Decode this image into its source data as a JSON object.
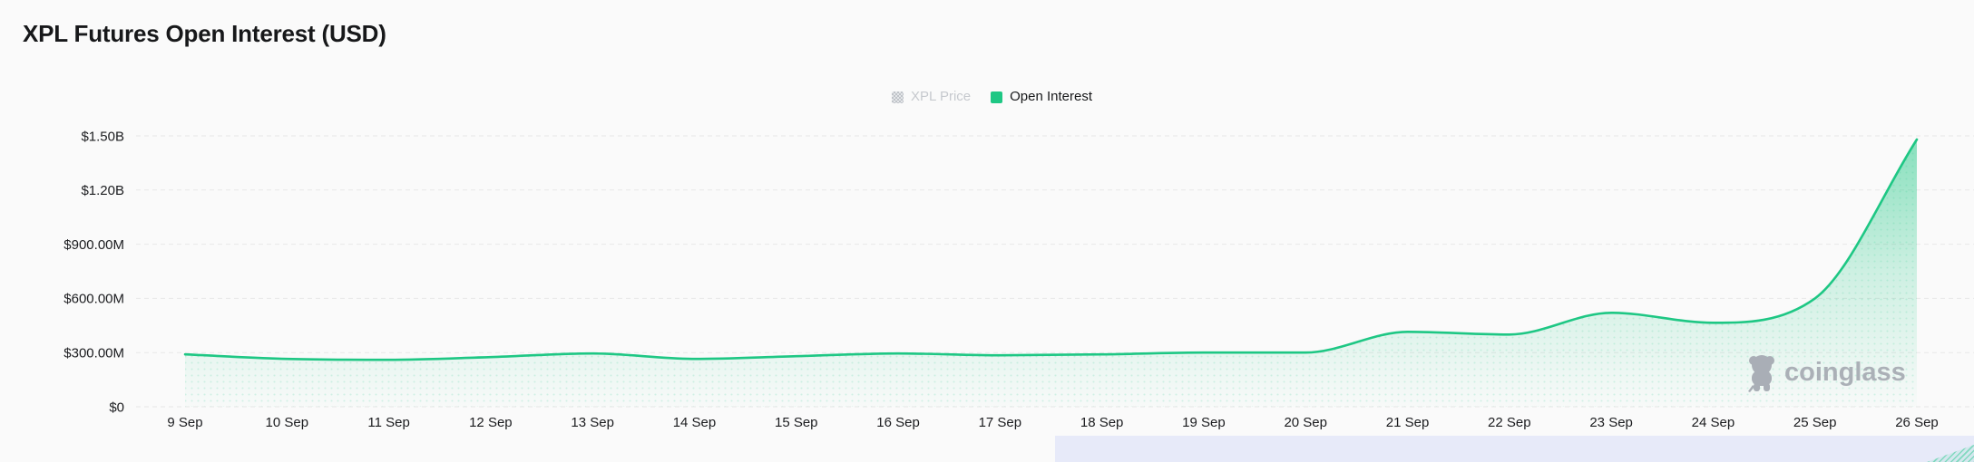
{
  "page": {
    "title": "XPL Futures Open Interest (USD)"
  },
  "legend": {
    "items": [
      {
        "label": "XPL Price",
        "state": "disabled",
        "swatch_color": "#c9ccd1"
      },
      {
        "label": "Open Interest",
        "state": "active",
        "swatch_color": "#1ec784"
      }
    ]
  },
  "watermark": {
    "label": "coinglass"
  },
  "colors": {
    "background": "#fafafa",
    "accent_green": "#1ec784",
    "grid": "#e7e7e7",
    "axis_text": "#1b1c1f",
    "disabled_text": "#c6c9ce",
    "navigator_mask": "#e7eaf9"
  },
  "chart_data": {
    "type": "area",
    "title": "XPL Futures Open Interest (USD)",
    "x_categories": [
      "9 Sep",
      "10 Sep",
      "11 Sep",
      "12 Sep",
      "13 Sep",
      "14 Sep",
      "15 Sep",
      "16 Sep",
      "17 Sep",
      "18 Sep",
      "19 Sep",
      "20 Sep",
      "21 Sep",
      "22 Sep",
      "23 Sep",
      "24 Sep",
      "25 Sep",
      "26 Sep"
    ],
    "series": [
      {
        "name": "XPL Price",
        "visible": false,
        "values": []
      },
      {
        "name": "Open Interest",
        "visible": true,
        "unit": "USD (millions)",
        "values": [
          290,
          265,
          260,
          275,
          295,
          265,
          280,
          295,
          285,
          290,
          300,
          300,
          415,
          400,
          520,
          465,
          600,
          1480
        ]
      }
    ],
    "y_ticks": [
      {
        "label": "$1.50B",
        "value": 1500
      },
      {
        "label": "$1.20B",
        "value": 1200
      },
      {
        "label": "$900.00M",
        "value": 900
      },
      {
        "label": "$600.00M",
        "value": 600
      },
      {
        "label": "$300.00M",
        "value": 300
      },
      {
        "label": "$0",
        "value": 0
      }
    ],
    "ylim_musd": [
      0,
      1500
    ],
    "grid": "horizontal-dashed",
    "legend_position": "top-center"
  }
}
